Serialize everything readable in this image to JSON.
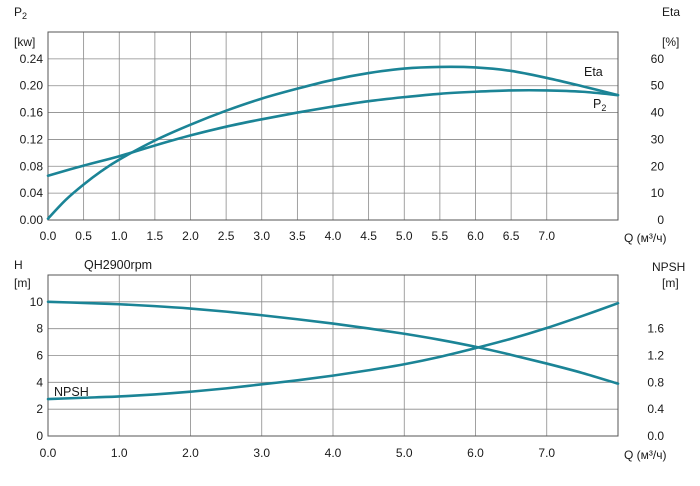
{
  "colors": {
    "curve": "#1b8496",
    "grid": "#8a8a8a",
    "frame": "#555555",
    "text": "#1a1a1a"
  },
  "chart_data": [
    {
      "type": "line",
      "id": "top",
      "xlabel": "Q (м³/ч)",
      "xlim": [
        0,
        8
      ],
      "x_ticks": [
        0,
        0.5,
        1,
        1.5,
        2,
        2.5,
        3,
        3.5,
        4,
        4.5,
        5,
        5.5,
        6,
        6.5,
        7
      ],
      "x_tick_labels": [
        "0.0",
        "0.5",
        "1.0",
        "1.5",
        "2.0",
        "2.5",
        "3.0",
        "3.5",
        "4.0",
        "4.5",
        "5.0",
        "5.5",
        "6.0",
        "6.5",
        "7.0"
      ],
      "grid": true,
      "y_left": {
        "label_main": "P",
        "label_sub": "2",
        "unit": "[kw]",
        "ylim": [
          0,
          0.28
        ],
        "ticks": [
          0,
          0.04,
          0.08,
          0.12,
          0.16,
          0.2,
          0.24
        ],
        "tick_labels": [
          "0.00",
          "0.04",
          "0.08",
          "0.12",
          "0.16",
          "0.20",
          "0.24"
        ]
      },
      "y_right": {
        "label": "Eta",
        "unit": "[%]",
        "ylim": [
          0,
          70
        ],
        "ticks": [
          0,
          10,
          20,
          30,
          40,
          50,
          60
        ],
        "tick_labels": [
          "0",
          "10",
          "20",
          "30",
          "40",
          "50",
          "60"
        ]
      },
      "series": [
        {
          "name": "Eta",
          "axis": "right",
          "label_main": "Eta",
          "x": [
            0,
            0.25,
            0.5,
            0.75,
            1,
            1.5,
            2,
            2.5,
            3,
            3.5,
            4,
            4.5,
            5,
            5.5,
            6,
            6.5,
            7,
            7.5,
            8
          ],
          "y": [
            0.5,
            7.5,
            13.2,
            18.2,
            22.5,
            29.6,
            35.5,
            40.7,
            45.2,
            48.9,
            52.2,
            54.7,
            56.4,
            57.0,
            56.8,
            55.5,
            52.9,
            49.8,
            46.5
          ]
        },
        {
          "name": "P2",
          "axis": "left",
          "label_main": "P",
          "label_sub": "2",
          "x": [
            0,
            0.5,
            1,
            1.5,
            2,
            2.5,
            3,
            3.5,
            4,
            4.5,
            5,
            5.5,
            6,
            6.5,
            7,
            7.5,
            8
          ],
          "y": [
            0.066,
            0.081,
            0.095,
            0.111,
            0.126,
            0.139,
            0.15,
            0.16,
            0.169,
            0.177,
            0.183,
            0.188,
            0.191,
            0.193,
            0.193,
            0.191,
            0.186
          ]
        }
      ]
    },
    {
      "type": "line",
      "id": "bottom",
      "xlabel": "Q (м³/ч)",
      "xlim": [
        0,
        8
      ],
      "x_ticks": [
        0,
        1,
        2,
        3,
        4,
        5,
        6,
        7
      ],
      "x_tick_labels": [
        "0.0",
        "1.0",
        "2.0",
        "3.0",
        "4.0",
        "5.0",
        "6.0",
        "7.0"
      ],
      "grid": true,
      "y_left": {
        "label": "H",
        "unit": "[m]",
        "ylim": [
          0,
          12
        ],
        "ticks": [
          0,
          2,
          4,
          6,
          8,
          10
        ],
        "tick_labels": [
          "0",
          "2",
          "4",
          "6",
          "8",
          "10"
        ]
      },
      "y_right": {
        "label": "NPSH",
        "unit": "[m]",
        "ylim": [
          0,
          2.4
        ],
        "ticks": [
          0,
          0.4,
          0.8,
          1.2,
          1.6
        ],
        "tick_labels": [
          "0.0",
          "0.4",
          "0.8",
          "1.2",
          "1.6"
        ]
      },
      "series": [
        {
          "name": "QH2900rpm",
          "axis": "left",
          "label_main": "QH2900rpm",
          "x": [
            0,
            0.5,
            1,
            1.5,
            2,
            2.5,
            3,
            3.5,
            4,
            4.5,
            5,
            5.5,
            6,
            6.5,
            7,
            7.5,
            8
          ],
          "y": [
            10.0,
            9.92,
            9.82,
            9.68,
            9.5,
            9.27,
            9.0,
            8.7,
            8.38,
            8.02,
            7.62,
            7.17,
            6.65,
            6.05,
            5.4,
            4.7,
            3.9
          ]
        },
        {
          "name": "NPSH",
          "axis": "right",
          "label_main": "NPSH",
          "x": [
            0,
            0.5,
            1,
            1.5,
            2,
            2.5,
            3,
            3.5,
            4,
            4.5,
            5,
            5.5,
            6,
            6.5,
            7,
            7.5,
            8
          ],
          "y": [
            0.55,
            0.57,
            0.59,
            0.62,
            0.66,
            0.71,
            0.77,
            0.83,
            0.9,
            0.98,
            1.07,
            1.18,
            1.31,
            1.45,
            1.61,
            1.79,
            1.98
          ]
        }
      ]
    }
  ]
}
